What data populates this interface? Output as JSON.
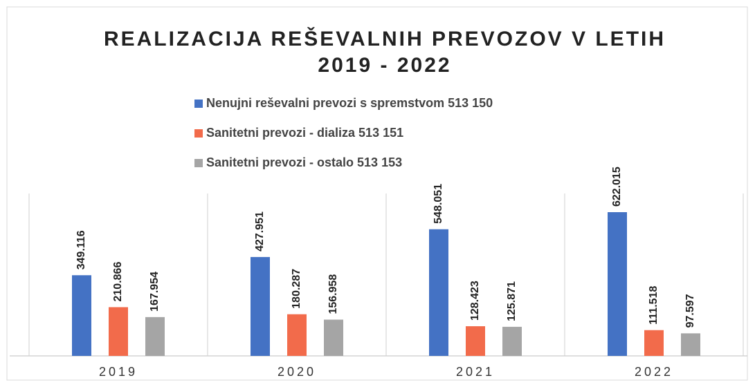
{
  "chart_data": {
    "type": "bar",
    "title": [
      "REALIZACIJA REŠEVALNIH PREVOZOV  V LETIH",
      "2019 - 2022"
    ],
    "categories": [
      "2019",
      "2020",
      "2021",
      "2022"
    ],
    "series": [
      {
        "name": "Nenujni reševalni prevozi s spremstvom 513 150",
        "color": "#4472c4",
        "values": [
          349116,
          427951,
          548051,
          622015
        ],
        "value_labels": [
          "349.116",
          "427.951",
          "548.051",
          "622.015"
        ]
      },
      {
        "name": "Sanitetni prevozi - dializa 513 151",
        "color": "#f26b4b",
        "values": [
          210866,
          180287,
          128423,
          111518
        ],
        "value_labels": [
          "210.866",
          "180.287",
          "128.423",
          "111.518"
        ]
      },
      {
        "name": "Sanitetni prevozi -  ostalo 513 153",
        "color": "#a5a5a5",
        "values": [
          167954,
          156958,
          125871,
          97597
        ],
        "value_labels": [
          "167.954",
          "156.958",
          "125.871",
          "97.597"
        ]
      }
    ]
  }
}
